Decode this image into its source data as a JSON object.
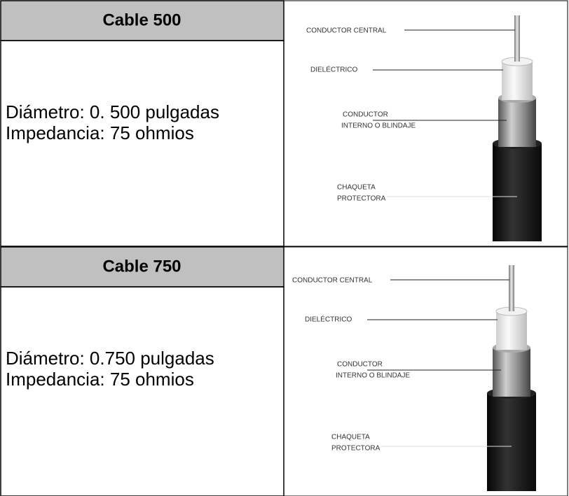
{
  "rows": [
    {
      "title": "Cable 500",
      "specs": [
        "Diámetro: 0. 500 pulgadas",
        "Impedancia: 75 ohmios"
      ],
      "diagram": {
        "labels": [
          "CONDUCTOR CENTRAL",
          "DIELÉCTRICO",
          "CONDUCTOR",
          "INTERNO O BLINDAJE",
          "CHAQUETA",
          "PROTECTORA"
        ]
      }
    },
    {
      "title": "Cable 750",
      "specs": [
        "Diámetro: 0.750 pulgadas",
        "Impedancia: 75 ohmios"
      ],
      "diagram": {
        "labels": [
          "CONDUCTOR CENTRAL",
          "DIELÉCTRICO",
          "CONDUCTOR",
          "INTERNO O BLINDAJE",
          "CHAQUETA",
          "PROTECTORA"
        ]
      }
    }
  ]
}
